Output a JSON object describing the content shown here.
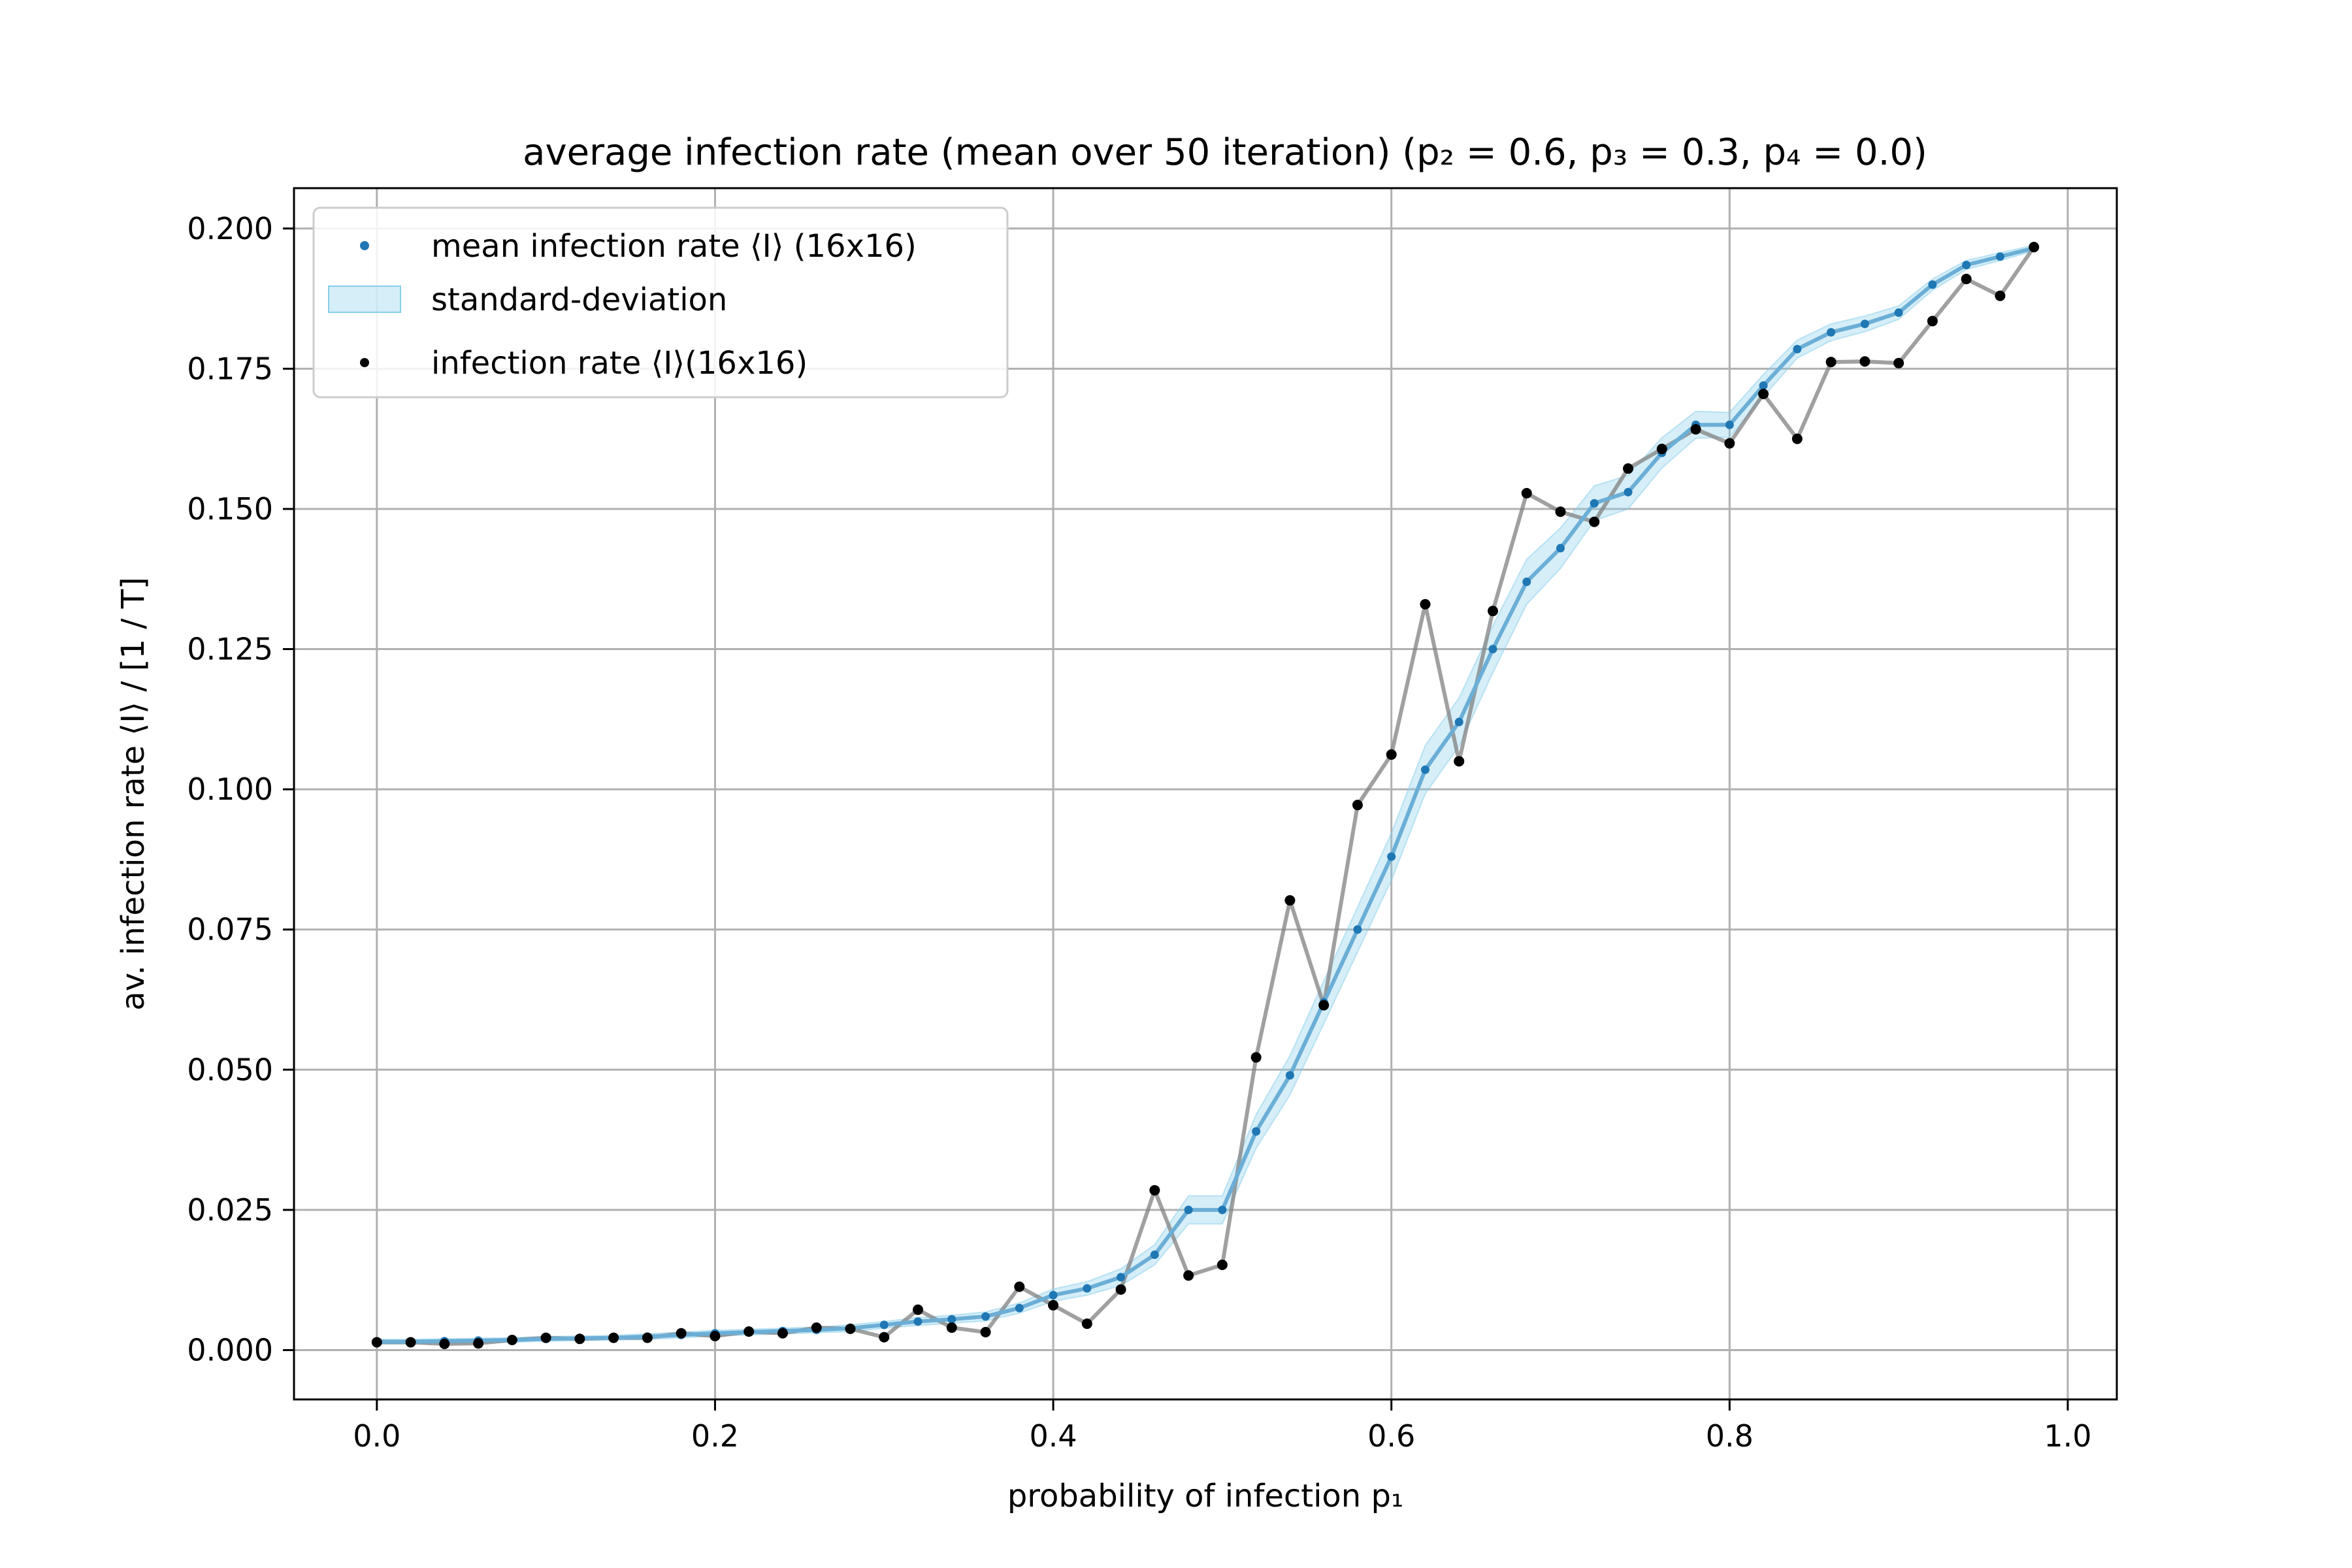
{
  "chart_data": {
    "type": "line",
    "title": "average infection rate (mean over 50 iteration) (p₂ = 0.6, p₃ = 0.3, p₄ = 0.0)",
    "xlabel": "probability of infection p₁",
    "ylabel": "av. infection rate ⟨I⟩ / [1 / T]",
    "xlim": [
      -0.049,
      1.029
    ],
    "ylim": [
      -0.0088,
      0.2072
    ],
    "xticks": [
      0.0,
      0.2,
      0.4,
      0.6,
      0.8,
      1.0
    ],
    "xtick_labels": [
      "0.0",
      "0.2",
      "0.4",
      "0.6",
      "0.8",
      "1.0"
    ],
    "yticks": [
      0.0,
      0.025,
      0.05,
      0.075,
      0.1,
      0.125,
      0.15,
      0.175,
      0.2
    ],
    "ytick_labels": [
      "0.000",
      "0.025",
      "0.050",
      "0.075",
      "0.100",
      "0.125",
      "0.150",
      "0.175",
      "0.200"
    ],
    "grid": true,
    "legend_position": "top-left",
    "x": [
      0.0,
      0.02,
      0.04,
      0.06,
      0.08,
      0.1,
      0.12,
      0.14,
      0.16,
      0.18,
      0.2,
      0.22,
      0.24,
      0.26,
      0.28,
      0.3,
      0.32,
      0.34,
      0.36,
      0.38,
      0.4,
      0.42,
      0.44,
      0.46,
      0.48,
      0.5,
      0.52,
      0.54,
      0.56,
      0.58,
      0.6,
      0.62,
      0.64,
      0.66,
      0.68,
      0.7,
      0.72,
      0.74,
      0.76,
      0.78,
      0.8,
      0.82,
      0.84,
      0.86,
      0.88,
      0.9,
      0.92,
      0.94,
      0.96,
      0.98
    ],
    "series": [
      {
        "name": "mean infection rate ⟨I⟩ (16x16)",
        "color": "#1f77b4",
        "line_color": "#6baed6",
        "values": [
          0.0015,
          0.0015,
          0.0016,
          0.0017,
          0.0018,
          0.002,
          0.0021,
          0.0022,
          0.0024,
          0.0027,
          0.003,
          0.0032,
          0.0034,
          0.0036,
          0.0039,
          0.0045,
          0.0051,
          0.0055,
          0.006,
          0.0075,
          0.0098,
          0.011,
          0.013,
          0.017,
          0.025,
          0.025,
          0.039,
          0.049,
          0.062,
          0.075,
          0.088,
          0.1035,
          0.112,
          0.125,
          0.137,
          0.143,
          0.151,
          0.153,
          0.16,
          0.165,
          0.165,
          0.172,
          0.1785,
          0.1815,
          0.183,
          0.185,
          0.19,
          0.1935,
          0.195,
          0.1965
        ]
      },
      {
        "name": "standard-deviation",
        "color": "#87ceeb",
        "fill_opacity": 0.35,
        "values": [
          0.0004,
          0.0004,
          0.0004,
          0.0004,
          0.0004,
          0.0004,
          0.0004,
          0.0004,
          0.0005,
          0.0005,
          0.0005,
          0.0005,
          0.0005,
          0.0005,
          0.0006,
          0.0006,
          0.0007,
          0.0007,
          0.0008,
          0.0009,
          0.0011,
          0.0012,
          0.0015,
          0.0018,
          0.0025,
          0.0025,
          0.003,
          0.0035,
          0.0038,
          0.004,
          0.0042,
          0.0043,
          0.0043,
          0.0042,
          0.004,
          0.0036,
          0.0031,
          0.003,
          0.0027,
          0.0024,
          0.0022,
          0.002,
          0.0016,
          0.0015,
          0.0014,
          0.0012,
          0.001,
          0.0008,
          0.0007,
          0.0005
        ]
      },
      {
        "name": "infection rate ⟨I⟩(16x16)",
        "color": "#000000",
        "line_color": "#808080",
        "values": [
          0.0014,
          0.0014,
          0.0011,
          0.0012,
          0.0018,
          0.0022,
          0.002,
          0.0022,
          0.0022,
          0.003,
          0.0025,
          0.0033,
          0.003,
          0.004,
          0.0038,
          0.0023,
          0.0072,
          0.004,
          0.0032,
          0.0113,
          0.008,
          0.0047,
          0.0108,
          0.0285,
          0.0133,
          0.0152,
          0.0522,
          0.0802,
          0.0615,
          0.0972,
          0.1062,
          0.133,
          0.105,
          0.1318,
          0.1528,
          0.1495,
          0.1477,
          0.1572,
          0.1607,
          0.1642,
          0.1617,
          0.1705,
          0.1625,
          0.1762,
          0.1763,
          0.176,
          0.1835,
          0.191,
          0.188,
          0.1967
        ]
      }
    ]
  }
}
